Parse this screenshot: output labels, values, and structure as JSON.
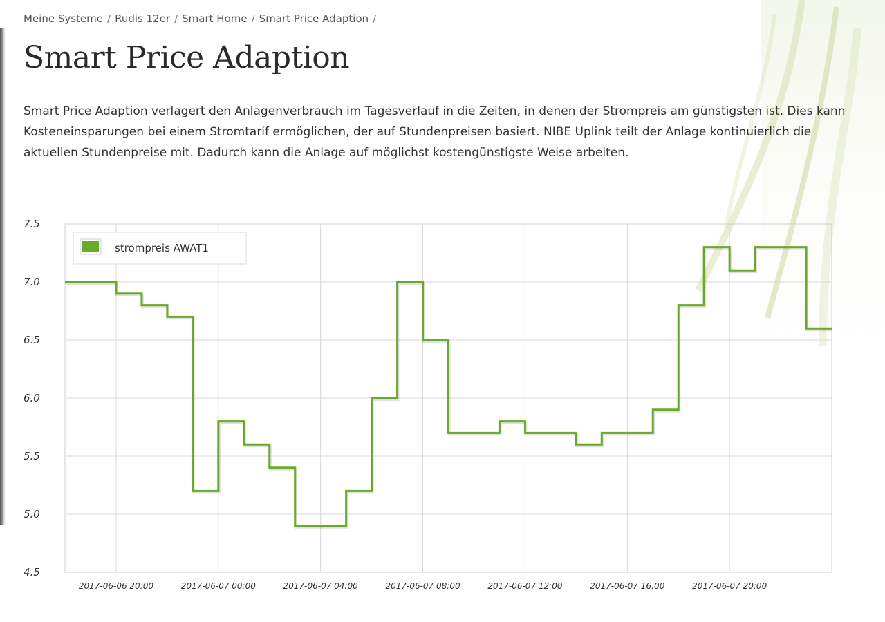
{
  "breadcrumb": {
    "items": [
      "Meine Systeme",
      "Rudis 12er",
      "Smart Home",
      "Smart Price Adaption"
    ],
    "separator": "/"
  },
  "page_title": "Smart Price Adaption",
  "intro": "Smart Price Adaption verlagert den Anlagenverbrauch im Tagesverlauf in die Zeiten, in denen der Strompreis am günstigsten ist. Dies kann Kosteneinsparungen bei einem Stromtarif ermöglichen, der auf Stundenpreisen basiert. NIBE Uplink teilt der Anlage kontinuierlich die aktuellen Stundenpreise mit. Dadurch kann die Anlage auf möglichst kostengünstigste Weise arbeiten.",
  "colors": {
    "series": "#6aaa2a",
    "grid": "#d8d8d8",
    "legend_swatch": "#6aaa2a"
  },
  "chart_data": {
    "type": "line",
    "step": true,
    "xlabel": "",
    "ylabel": "",
    "x_start": "2017-06-06 18:00",
    "x_end": "2017-06-08 00:00",
    "ylim": [
      4.5,
      7.5
    ],
    "yticks": [
      "7.5",
      "7.0",
      "6.5",
      "6.0",
      "5.5",
      "5.0",
      "4.5"
    ],
    "xticks": [
      {
        "time": "2017-06-06 20:00",
        "label": "2017-06-06 20:00"
      },
      {
        "time": "2017-06-07 00:00",
        "label": "2017-06-07 00:00"
      },
      {
        "time": "2017-06-07 04:00",
        "label": "2017-06-07 04:00"
      },
      {
        "time": "2017-06-07 08:00",
        "label": "2017-06-07 08:00"
      },
      {
        "time": "2017-06-07 12:00",
        "label": "2017-06-07 12:00"
      },
      {
        "time": "2017-06-07 16:00",
        "label": "2017-06-07 16:00"
      },
      {
        "time": "2017-06-07 20:00",
        "label": "2017-06-07 20:00"
      }
    ],
    "grid": true,
    "legend_position": "top-left",
    "series": [
      {
        "name": "strompreis AWAT1",
        "points": [
          {
            "x": "2017-06-06 18:00",
            "y": 7.0
          },
          {
            "x": "2017-06-06 19:00",
            "y": 7.0
          },
          {
            "x": "2017-06-06 20:00",
            "y": 6.9
          },
          {
            "x": "2017-06-06 21:00",
            "y": 6.8
          },
          {
            "x": "2017-06-06 22:00",
            "y": 6.7
          },
          {
            "x": "2017-06-06 23:00",
            "y": 5.2
          },
          {
            "x": "2017-06-07 00:00",
            "y": 5.8
          },
          {
            "x": "2017-06-07 01:00",
            "y": 5.6
          },
          {
            "x": "2017-06-07 02:00",
            "y": 5.4
          },
          {
            "x": "2017-06-07 03:00",
            "y": 4.9
          },
          {
            "x": "2017-06-07 04:00",
            "y": 4.9
          },
          {
            "x": "2017-06-07 05:00",
            "y": 5.2
          },
          {
            "x": "2017-06-07 06:00",
            "y": 6.0
          },
          {
            "x": "2017-06-07 07:00",
            "y": 7.0
          },
          {
            "x": "2017-06-07 08:00",
            "y": 6.5
          },
          {
            "x": "2017-06-07 09:00",
            "y": 5.7
          },
          {
            "x": "2017-06-07 10:00",
            "y": 5.7
          },
          {
            "x": "2017-06-07 11:00",
            "y": 5.8
          },
          {
            "x": "2017-06-07 12:00",
            "y": 5.7
          },
          {
            "x": "2017-06-07 13:00",
            "y": 5.7
          },
          {
            "x": "2017-06-07 14:00",
            "y": 5.6
          },
          {
            "x": "2017-06-07 15:00",
            "y": 5.7
          },
          {
            "x": "2017-06-07 16:00",
            "y": 5.7
          },
          {
            "x": "2017-06-07 17:00",
            "y": 5.9
          },
          {
            "x": "2017-06-07 18:00",
            "y": 6.8
          },
          {
            "x": "2017-06-07 19:00",
            "y": 7.3
          },
          {
            "x": "2017-06-07 20:00",
            "y": 7.1
          },
          {
            "x": "2017-06-07 21:00",
            "y": 7.3
          },
          {
            "x": "2017-06-07 22:00",
            "y": 7.3
          },
          {
            "x": "2017-06-07 23:00",
            "y": 6.6
          }
        ]
      }
    ]
  }
}
